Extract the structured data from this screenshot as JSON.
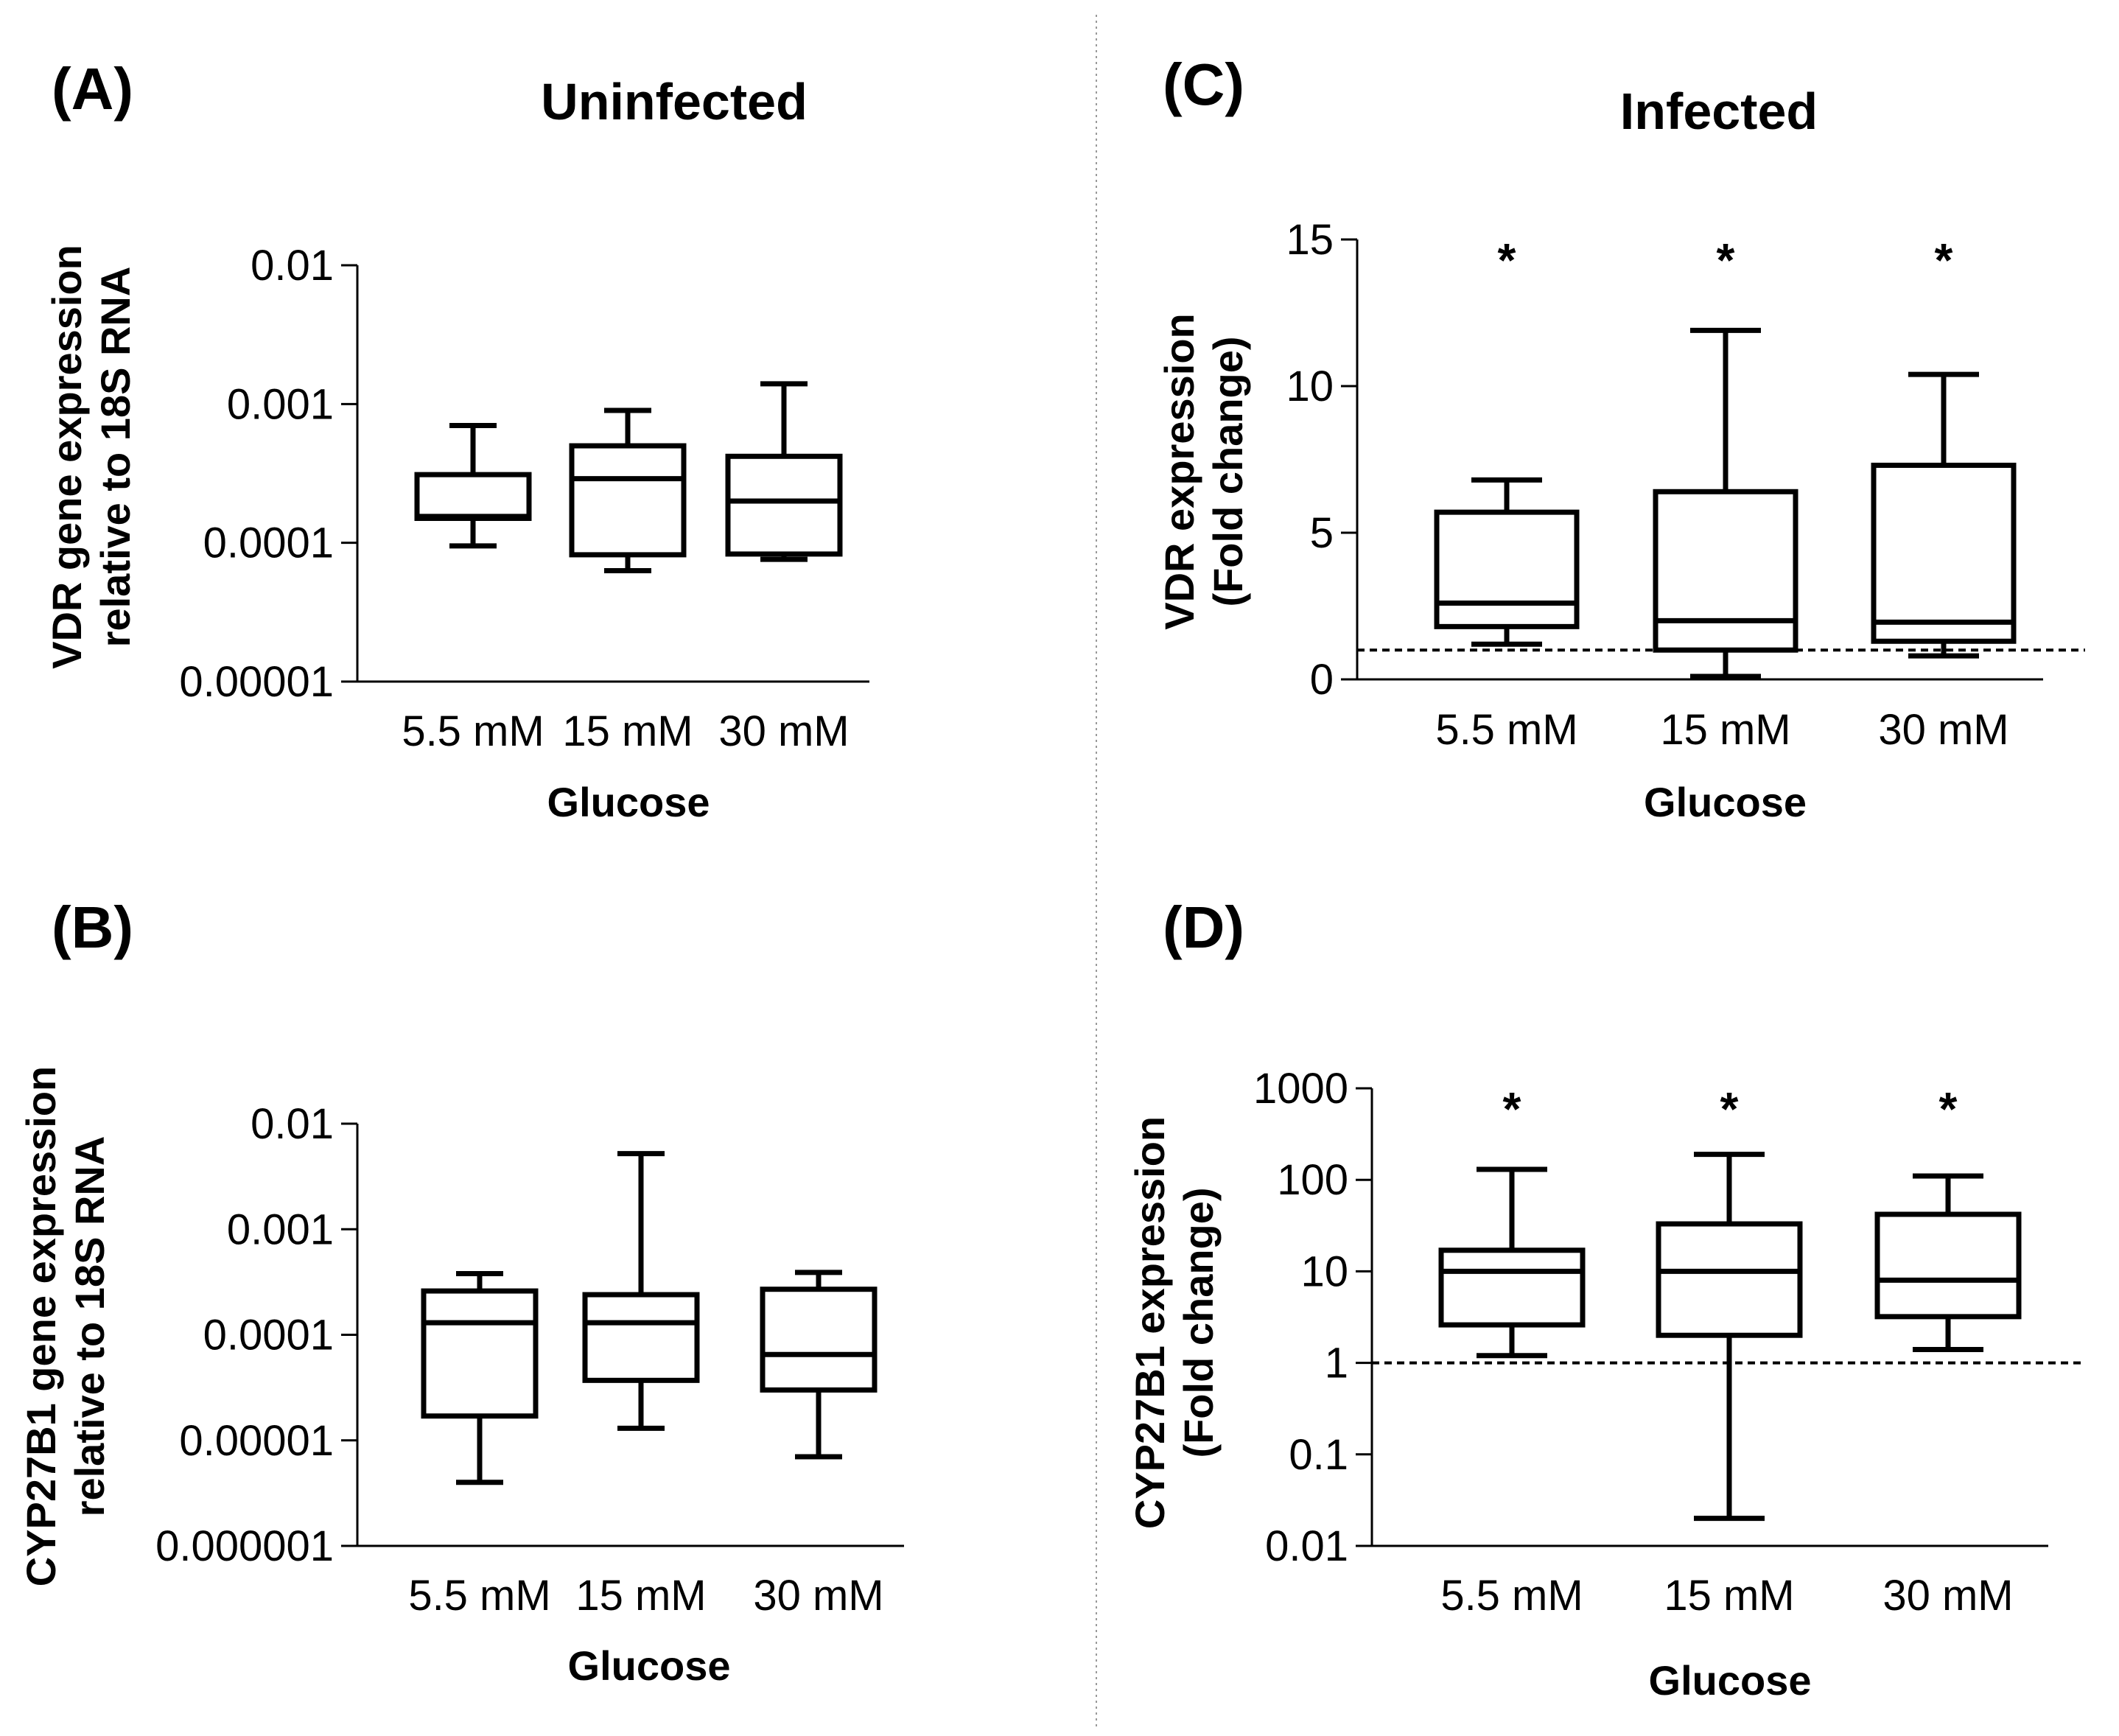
{
  "figure": {
    "groups": {
      "uninfected": "Uninfected",
      "infected": "Infected"
    }
  },
  "chart_data": [
    {
      "id": "A",
      "panel_label": "(A)",
      "type": "box",
      "title": "",
      "ylabel_lines": [
        "VDR gene expression",
        "relative to 18S RNA"
      ],
      "xlabel": "Glucose",
      "yscale": "log",
      "ylim": [
        1e-05,
        0.01
      ],
      "yticks": [
        1e-05,
        0.0001,
        0.001,
        0.01
      ],
      "ytick_labels": [
        "0.00001",
        "0.0001",
        "0.001",
        "0.01"
      ],
      "categories": [
        "5.5 mM",
        "15 mM",
        "30 mM"
      ],
      "boxes": [
        {
          "min": 9.5e-05,
          "q1": 0.00015,
          "median": 0.000155,
          "q3": 0.00031,
          "max": 0.0007
        },
        {
          "min": 6.3e-05,
          "q1": 8.2e-05,
          "median": 0.00029,
          "q3": 0.0005,
          "max": 0.0009
        },
        {
          "min": 7.6e-05,
          "q1": 8.3e-05,
          "median": 0.0002,
          "q3": 0.00042,
          "max": 0.0014
        }
      ],
      "reference_line": null,
      "significance": [
        "",
        "",
        ""
      ]
    },
    {
      "id": "B",
      "panel_label": "(B)",
      "type": "box",
      "title": "",
      "ylabel_lines": [
        "CYP27B1 gene expression",
        "relative to 18S RNA"
      ],
      "xlabel": "Glucose",
      "yscale": "log",
      "ylim": [
        1e-06,
        0.01
      ],
      "yticks": [
        1e-06,
        1e-05,
        0.0001,
        0.001,
        0.01
      ],
      "ytick_labels": [
        "0.000001",
        "0.00001",
        "0.0001",
        "0.001",
        "0.01"
      ],
      "categories": [
        "5.5 mM",
        "15 mM",
        "30 mM"
      ],
      "boxes": [
        {
          "min": 4e-06,
          "q1": 1.7e-05,
          "median": 0.00013,
          "q3": 0.00026,
          "max": 0.00038
        },
        {
          "min": 1.3e-05,
          "q1": 3.7e-05,
          "median": 0.00013,
          "q3": 0.00024,
          "max": 0.0052
        },
        {
          "min": 7e-06,
          "q1": 3e-05,
          "median": 6.5e-05,
          "q3": 0.00027,
          "max": 0.00039
        }
      ],
      "reference_line": null,
      "significance": [
        "",
        "",
        ""
      ]
    },
    {
      "id": "C",
      "panel_label": "(C)",
      "type": "box",
      "title": "",
      "ylabel_lines": [
        "VDR expression",
        "(Fold change)"
      ],
      "xlabel": "Glucose",
      "yscale": "linear",
      "ylim": [
        0,
        15
      ],
      "yticks": [
        0,
        5,
        10,
        15
      ],
      "ytick_labels": [
        "0",
        "5",
        "10",
        "15"
      ],
      "categories": [
        "5.5 mM",
        "15 mM",
        "30 mM"
      ],
      "boxes": [
        {
          "min": 1.2,
          "q1": 1.8,
          "median": 2.6,
          "q3": 5.7,
          "max": 6.8
        },
        {
          "min": 0.1,
          "q1": 1.0,
          "median": 2.0,
          "q3": 6.4,
          "max": 11.9
        },
        {
          "min": 0.8,
          "q1": 1.3,
          "median": 1.95,
          "q3": 7.3,
          "max": 10.4
        }
      ],
      "reference_line": 1,
      "significance": [
        "*",
        "*",
        "*"
      ]
    },
    {
      "id": "D",
      "panel_label": "(D)",
      "type": "box",
      "title": "",
      "ylabel_lines": [
        "CYP27B1 expression",
        "(Fold change)"
      ],
      "xlabel": "Glucose",
      "yscale": "log",
      "ylim": [
        0.01,
        1000
      ],
      "yticks": [
        0.01,
        0.1,
        1,
        10,
        100,
        1000
      ],
      "ytick_labels": [
        "0.01",
        "0.1",
        "1",
        "10",
        "100",
        "1000"
      ],
      "categories": [
        "5.5 mM",
        "15 mM",
        "30 mM"
      ],
      "boxes": [
        {
          "min": 1.2,
          "q1": 2.6,
          "median": 10,
          "q3": 17,
          "max": 130
        },
        {
          "min": 0.02,
          "q1": 2.0,
          "median": 10,
          "q3": 33,
          "max": 190
        },
        {
          "min": 1.4,
          "q1": 3.2,
          "median": 8,
          "q3": 42,
          "max": 110
        }
      ],
      "reference_line": 1,
      "significance": [
        "*",
        "*",
        "*"
      ]
    }
  ]
}
